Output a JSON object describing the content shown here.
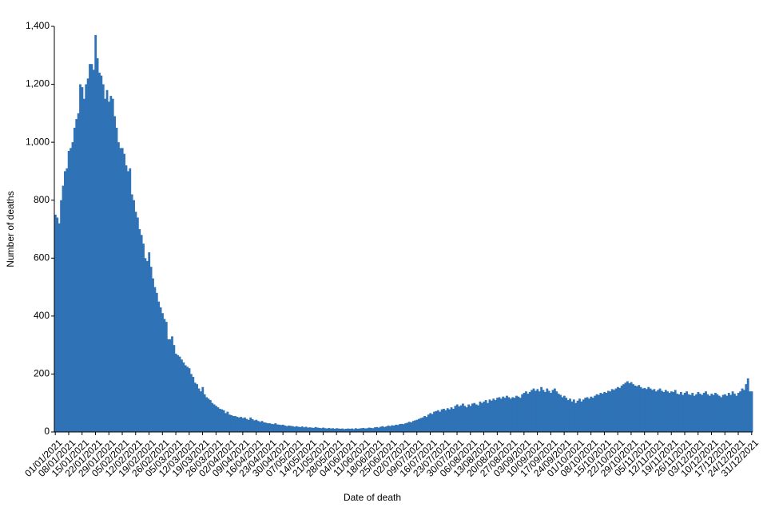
{
  "chart_data": {
    "type": "bar",
    "color": "#2f72b6",
    "x_label": "Date of death",
    "y_label": "Number of deaths",
    "ylim": [
      0,
      1400
    ],
    "yticks": [
      0,
      200,
      400,
      600,
      800,
      {
        "value": 1000,
        "label": "1,000"
      },
      {
        "value": 1200,
        "label": "1,200"
      },
      {
        "value": 1400,
        "label": "1,400"
      }
    ],
    "categories": [
      "01/01/2021",
      null,
      null,
      null,
      null,
      null,
      null,
      "08/01/2021",
      null,
      null,
      null,
      null,
      null,
      null,
      "15/01/2021",
      null,
      null,
      null,
      null,
      null,
      null,
      "22/01/2021",
      null,
      null,
      null,
      null,
      null,
      null,
      "29/01/2021",
      null,
      null,
      null,
      null,
      null,
      null,
      "05/02/2021",
      null,
      null,
      null,
      null,
      null,
      null,
      "12/02/2021",
      null,
      null,
      null,
      null,
      null,
      null,
      "19/02/2021",
      null,
      null,
      null,
      null,
      null,
      null,
      "26/02/2021",
      null,
      null,
      null,
      null,
      null,
      null,
      "05/03/2021",
      null,
      null,
      null,
      null,
      null,
      null,
      "12/03/2021",
      null,
      null,
      null,
      null,
      null,
      null,
      "19/03/2021",
      null,
      null,
      null,
      null,
      null,
      null,
      "26/03/2021",
      null,
      null,
      null,
      null,
      null,
      null,
      "02/04/2021",
      null,
      null,
      null,
      null,
      null,
      null,
      "09/04/2021",
      null,
      null,
      null,
      null,
      null,
      null,
      "16/04/2021",
      null,
      null,
      null,
      null,
      null,
      null,
      "23/04/2021",
      null,
      null,
      null,
      null,
      null,
      null,
      "30/04/2021",
      null,
      null,
      null,
      null,
      null,
      null,
      "07/05/2021",
      null,
      null,
      null,
      null,
      null,
      null,
      "14/05/2021",
      null,
      null,
      null,
      null,
      null,
      null,
      "21/05/2021",
      null,
      null,
      null,
      null,
      null,
      null,
      "28/05/2021",
      null,
      null,
      null,
      null,
      null,
      null,
      "04/06/2021",
      null,
      null,
      null,
      null,
      null,
      null,
      "11/06/2021",
      null,
      null,
      null,
      null,
      null,
      null,
      "18/06/2021",
      null,
      null,
      null,
      null,
      null,
      null,
      "25/06/2021",
      null,
      null,
      null,
      null,
      null,
      null,
      "02/07/2021",
      null,
      null,
      null,
      null,
      null,
      null,
      "09/07/2021",
      null,
      null,
      null,
      null,
      null,
      null,
      "16/07/2021",
      null,
      null,
      null,
      null,
      null,
      null,
      "23/07/2021",
      null,
      null,
      null,
      null,
      null,
      null,
      "30/07/2021",
      null,
      null,
      null,
      null,
      null,
      null,
      "06/08/2021",
      null,
      null,
      null,
      null,
      null,
      null,
      "13/08/2021",
      null,
      null,
      null,
      null,
      null,
      null,
      "20/08/2021",
      null,
      null,
      null,
      null,
      null,
      null,
      "27/08/2021",
      null,
      null,
      null,
      null,
      null,
      null,
      "03/09/2021",
      null,
      null,
      null,
      null,
      null,
      null,
      "10/09/2021",
      null,
      null,
      null,
      null,
      null,
      null,
      "17/09/2021",
      null,
      null,
      null,
      null,
      null,
      null,
      "24/09/2021",
      null,
      null,
      null,
      null,
      null,
      null,
      "01/10/2021",
      null,
      null,
      null,
      null,
      null,
      null,
      "08/10/2021",
      null,
      null,
      null,
      null,
      null,
      null,
      "15/10/2021",
      null,
      null,
      null,
      null,
      null,
      null,
      "22/10/2021",
      null,
      null,
      null,
      null,
      null,
      null,
      "29/10/2021",
      null,
      null,
      null,
      null,
      null,
      null,
      "05/11/2021",
      null,
      null,
      null,
      null,
      null,
      null,
      "12/11/2021",
      null,
      null,
      null,
      null,
      null,
      null,
      "19/11/2021",
      null,
      null,
      null,
      null,
      null,
      null,
      "26/11/2021",
      null,
      null,
      null,
      null,
      null,
      null,
      "03/12/2021",
      null,
      null,
      null,
      null,
      null,
      null,
      "10/12/2021",
      null,
      null,
      null,
      null,
      null,
      null,
      "17/12/2021",
      null,
      null,
      null,
      null,
      null,
      null,
      "24/12/2021",
      null,
      null,
      null,
      null,
      null,
      null,
      "31/12/2021"
    ],
    "values": [
      750,
      740,
      720,
      800,
      850,
      900,
      910,
      970,
      980,
      1000,
      1050,
      1080,
      1100,
      1200,
      1190,
      1150,
      1200,
      1220,
      1270,
      1270,
      1250,
      1370,
      1290,
      1240,
      1230,
      1200,
      1150,
      1180,
      1140,
      1160,
      1150,
      1090,
      1050,
      1000,
      980,
      980,
      960,
      920,
      900,
      910,
      820,
      800,
      760,
      740,
      700,
      680,
      650,
      600,
      590,
      620,
      570,
      530,
      500,
      480,
      450,
      430,
      410,
      390,
      380,
      320,
      320,
      330,
      300,
      270,
      265,
      260,
      250,
      240,
      230,
      225,
      220,
      200,
      190,
      170,
      165,
      150,
      140,
      155,
      130,
      120,
      115,
      110,
      100,
      95,
      90,
      85,
      80,
      78,
      75,
      65,
      70,
      60,
      58,
      55,
      55,
      52,
      50,
      52,
      48,
      50,
      45,
      42,
      50,
      44,
      40,
      42,
      38,
      35,
      38,
      33,
      32,
      30,
      30,
      28,
      27,
      30,
      26,
      25,
      24,
      25,
      22,
      20,
      22,
      21,
      20,
      18,
      20,
      18,
      17,
      19,
      16,
      18,
      15,
      16,
      15,
      14,
      17,
      15,
      14,
      13,
      15,
      13,
      12,
      14,
      12,
      13,
      11,
      13,
      12,
      11,
      12,
      10,
      11,
      12,
      11,
      12,
      10,
      13,
      11,
      12,
      13,
      14,
      12,
      13,
      15,
      14,
      13,
      16,
      17,
      15,
      18,
      20,
      17,
      19,
      22,
      20,
      23,
      22,
      25,
      24,
      27,
      28,
      27,
      30,
      32,
      35,
      33,
      38,
      40,
      42,
      45,
      48,
      50,
      55,
      52,
      60,
      65,
      62,
      70,
      72,
      75,
      70,
      78,
      80,
      75,
      82,
      78,
      85,
      80,
      90,
      95,
      88,
      92,
      98,
      90,
      85,
      95,
      90,
      98,
      100,
      95,
      92,
      105,
      100,
      105,
      110,
      100,
      112,
      108,
      115,
      110,
      118,
      120,
      115,
      122,
      118,
      125,
      120,
      115,
      120,
      118,
      125,
      122,
      118,
      130,
      135,
      140,
      132,
      138,
      145,
      150,
      142,
      148,
      140,
      155,
      145,
      138,
      150,
      142,
      135,
      145,
      150,
      140,
      132,
      128,
      120,
      125,
      118,
      110,
      115,
      105,
      112,
      100,
      108,
      115,
      105,
      112,
      118,
      120,
      115,
      122,
      118,
      125,
      130,
      128,
      135,
      132,
      138,
      135,
      142,
      140,
      148,
      145,
      150,
      155,
      152,
      160,
      165,
      170,
      175,
      168,
      172,
      165,
      160,
      158,
      162,
      155,
      150,
      152,
      148,
      155,
      150,
      145,
      148,
      140,
      145,
      150,
      142,
      138,
      145,
      140,
      135,
      140,
      138,
      145,
      132,
      130,
      138,
      128,
      135,
      140,
      130,
      128,
      135,
      125,
      130,
      138,
      132,
      128,
      135,
      140,
      130,
      125,
      132,
      128,
      135,
      130,
      125,
      120,
      128,
      130,
      125,
      135,
      128,
      140,
      132,
      125,
      135,
      140,
      150,
      145,
      165,
      185,
      140,
      140
    ]
  }
}
